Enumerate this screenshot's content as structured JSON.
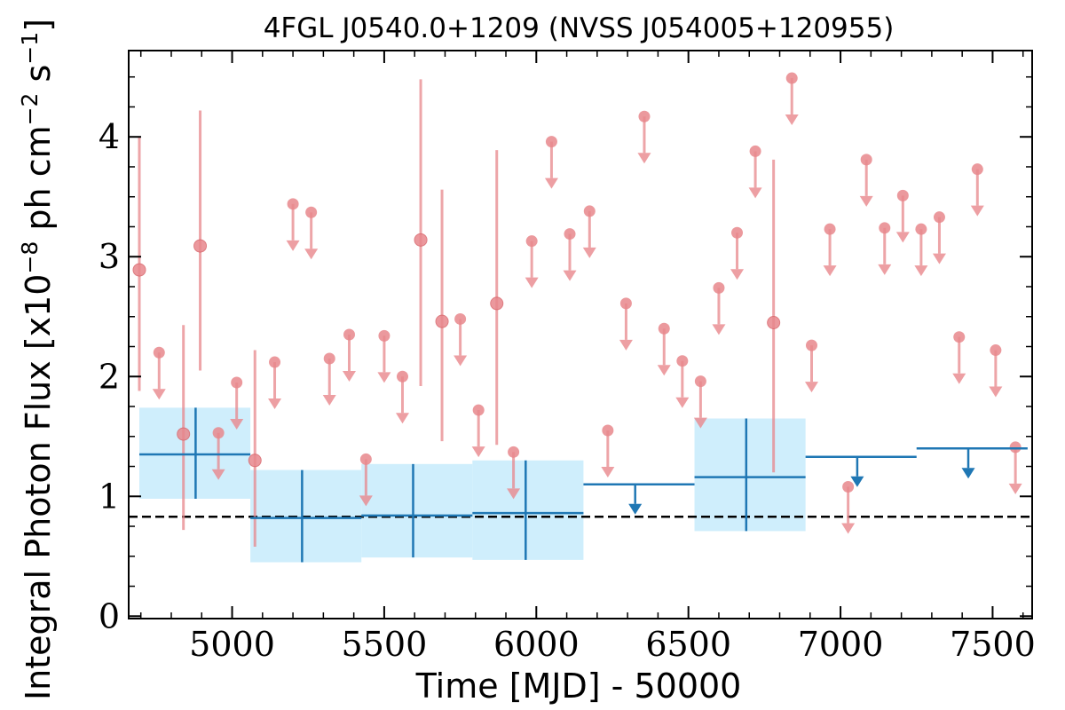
{
  "colors": {
    "monthly": "#e8878c",
    "yearly": "#1f77b4",
    "band": "#cfeefc",
    "ref": "#000000"
  },
  "chart_data": {
    "type": "scatter",
    "title": "4FGL J0540.0+1209 (NVSS J054005+120955)",
    "xlabel": "Time [MJD] - 50000",
    "ylabel": "Integral Photon Flux [x10",
    "ylabel_exp": "−8",
    "ylabel_mid": " ph cm",
    "ylabel_exp2": "−2",
    "ylabel_end": " s",
    "ylabel_exp3": "−1",
    "ylabel_close": "]",
    "xlim": [
      4660,
      7630
    ],
    "ylim": [
      -0.02,
      4.72
    ],
    "xticks": [
      5000,
      5500,
      6000,
      6500,
      7000,
      7500
    ],
    "xtick_labels": [
      "5000",
      "5500",
      "6000",
      "6500",
      "7000",
      "7500"
    ],
    "yticks": [
      0,
      1,
      2,
      3,
      4
    ],
    "ytick_labels": [
      "0",
      "1",
      "2",
      "3",
      "4"
    ],
    "reference_level": 0.83,
    "series": [
      {
        "kind": "monthly",
        "detections": [
          {
            "x": 4695,
            "y": 2.89,
            "lo": 1.88,
            "hi": 4.0
          },
          {
            "x": 4840,
            "y": 1.52,
            "lo": 0.72,
            "hi": 2.43
          },
          {
            "x": 4895,
            "y": 3.09,
            "lo": 2.05,
            "hi": 4.22
          },
          {
            "x": 5075,
            "y": 1.3,
            "lo": 0.58,
            "hi": 2.22
          },
          {
            "x": 5620,
            "y": 3.14,
            "lo": 1.92,
            "hi": 4.48
          },
          {
            "x": 5690,
            "y": 2.46,
            "lo": 1.46,
            "hi": 3.56
          },
          {
            "x": 5870,
            "y": 2.61,
            "lo": 1.43,
            "hi": 3.89
          },
          {
            "x": 6780,
            "y": 2.45,
            "lo": 1.2,
            "hi": 3.81
          }
        ],
        "upper_limits": [
          {
            "x": 4760,
            "y": 2.2
          },
          {
            "x": 4955,
            "y": 1.53
          },
          {
            "x": 5015,
            "y": 1.95
          },
          {
            "x": 5140,
            "y": 2.12
          },
          {
            "x": 5200,
            "y": 3.44
          },
          {
            "x": 5260,
            "y": 3.37
          },
          {
            "x": 5320,
            "y": 2.15
          },
          {
            "x": 5385,
            "y": 2.35
          },
          {
            "x": 5440,
            "y": 1.31
          },
          {
            "x": 5500,
            "y": 2.34
          },
          {
            "x": 5560,
            "y": 2.0
          },
          {
            "x": 5750,
            "y": 2.48
          },
          {
            "x": 5810,
            "y": 1.72
          },
          {
            "x": 5925,
            "y": 1.37
          },
          {
            "x": 5985,
            "y": 3.13
          },
          {
            "x": 6050,
            "y": 3.96
          },
          {
            "x": 6110,
            "y": 3.19
          },
          {
            "x": 6175,
            "y": 3.38
          },
          {
            "x": 6235,
            "y": 1.55
          },
          {
            "x": 6295,
            "y": 2.61
          },
          {
            "x": 6355,
            "y": 4.17
          },
          {
            "x": 6420,
            "y": 2.4
          },
          {
            "x": 6480,
            "y": 2.13
          },
          {
            "x": 6540,
            "y": 1.96
          },
          {
            "x": 6600,
            "y": 2.74
          },
          {
            "x": 6660,
            "y": 3.2
          },
          {
            "x": 6720,
            "y": 3.88
          },
          {
            "x": 6840,
            "y": 4.49
          },
          {
            "x": 6905,
            "y": 2.26
          },
          {
            "x": 6965,
            "y": 3.23
          },
          {
            "x": 7025,
            "y": 1.08
          },
          {
            "x": 7085,
            "y": 3.81
          },
          {
            "x": 7145,
            "y": 3.24
          },
          {
            "x": 7205,
            "y": 3.51
          },
          {
            "x": 7265,
            "y": 3.23
          },
          {
            "x": 7325,
            "y": 3.33
          },
          {
            "x": 7390,
            "y": 2.33
          },
          {
            "x": 7450,
            "y": 3.73
          },
          {
            "x": 7510,
            "y": 2.22
          },
          {
            "x": 7575,
            "y": 1.41
          }
        ]
      },
      {
        "kind": "yearly",
        "detections": [
          {
            "x0": 4695,
            "x1": 5060,
            "xc": 4880,
            "y": 1.35,
            "lo": 0.98,
            "hi": 1.74
          },
          {
            "x0": 5060,
            "x1": 5425,
            "xc": 5230,
            "y": 0.82,
            "lo": 0.45,
            "hi": 1.22
          },
          {
            "x0": 5425,
            "x1": 5790,
            "xc": 5595,
            "y": 0.84,
            "lo": 0.49,
            "hi": 1.27
          },
          {
            "x0": 5790,
            "x1": 6155,
            "xc": 5965,
            "y": 0.86,
            "lo": 0.47,
            "hi": 1.3
          },
          {
            "x0": 6520,
            "x1": 6885,
            "xc": 6690,
            "y": 1.16,
            "lo": 0.71,
            "hi": 1.65
          }
        ],
        "upper_limits": [
          {
            "x0": 6155,
            "x1": 6520,
            "xc": 6325,
            "y": 1.1
          },
          {
            "x0": 6885,
            "x1": 7250,
            "xc": 7055,
            "y": 1.33
          },
          {
            "x0": 7250,
            "x1": 7615,
            "xc": 7420,
            "y": 1.4
          }
        ]
      }
    ]
  }
}
